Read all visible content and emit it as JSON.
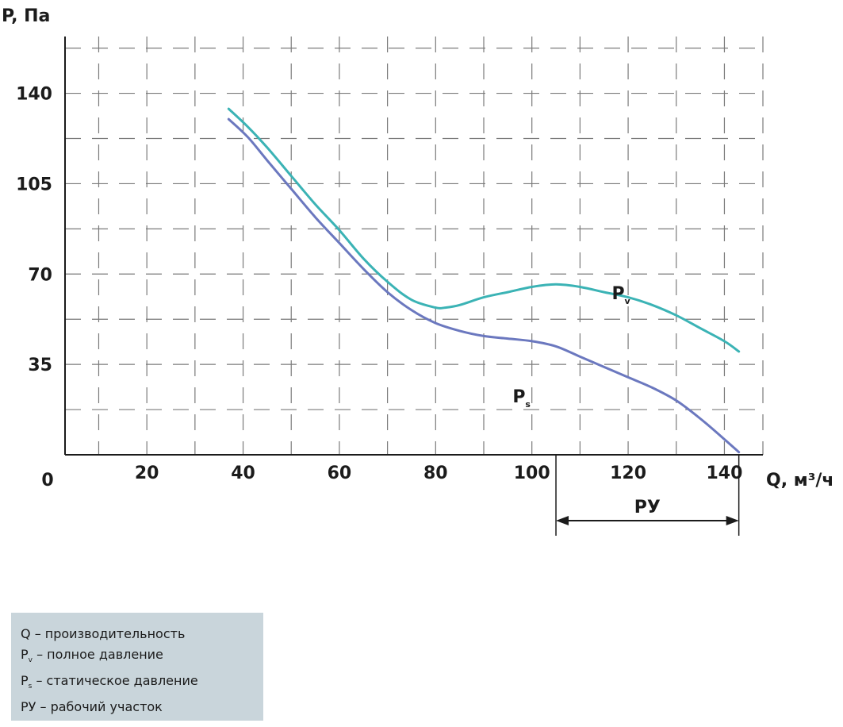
{
  "chart_data": {
    "type": "line",
    "ylabel": "P, Па",
    "xlabel": "Q, м³/ч",
    "origin_label": "0",
    "xlim": [
      3,
      148
    ],
    "ylim": [
      0,
      162
    ],
    "x_ticks": [
      20,
      40,
      60,
      80,
      100,
      120,
      140
    ],
    "y_ticks": [
      35,
      70,
      105,
      140
    ],
    "grid": true,
    "colors": {
      "Pv": "#3bb3b5",
      "Ps": "#6b78bf",
      "axis": "#1b1b1b",
      "grid": "#7a7a7a",
      "legend_bg": "#c9d5db"
    },
    "series": [
      {
        "id": "Pv",
        "name": "P",
        "subscript": "v",
        "x": [
          37,
          41,
          45,
          50,
          55,
          60,
          65,
          70,
          75,
          80,
          82,
          85,
          90,
          95,
          100,
          105,
          110,
          115,
          120,
          125,
          130,
          135,
          140,
          143
        ],
        "y": [
          134,
          127,
          119,
          108,
          97,
          87,
          76,
          67,
          60,
          57,
          57,
          58,
          61,
          63,
          65,
          66,
          65,
          63,
          61,
          58,
          54,
          49,
          44,
          40
        ]
      },
      {
        "id": "Ps",
        "name": "P",
        "subscript": "s",
        "x": [
          37,
          41,
          45,
          50,
          55,
          60,
          65,
          70,
          75,
          80,
          85,
          90,
          95,
          100,
          105,
          110,
          115,
          120,
          125,
          130,
          135,
          140,
          143
        ],
        "y": [
          130,
          123,
          114,
          103,
          92,
          82,
          72,
          63,
          56,
          51,
          48,
          46,
          45,
          44,
          42,
          38,
          34,
          30,
          26,
          21,
          14,
          6,
          1
        ]
      }
    ],
    "range_marker": {
      "label": "РУ",
      "from": 105,
      "to": 143
    }
  },
  "legend": {
    "items": [
      {
        "symbol": "Q",
        "sub": "",
        "text": "– производительность"
      },
      {
        "symbol": "P",
        "sub": "v",
        "text": "– полное давление"
      },
      {
        "symbol": "P",
        "sub": "s",
        "text": "– статическое давление"
      },
      {
        "symbol": "РУ",
        "sub": "",
        "text": "– рабочий участок"
      }
    ]
  }
}
